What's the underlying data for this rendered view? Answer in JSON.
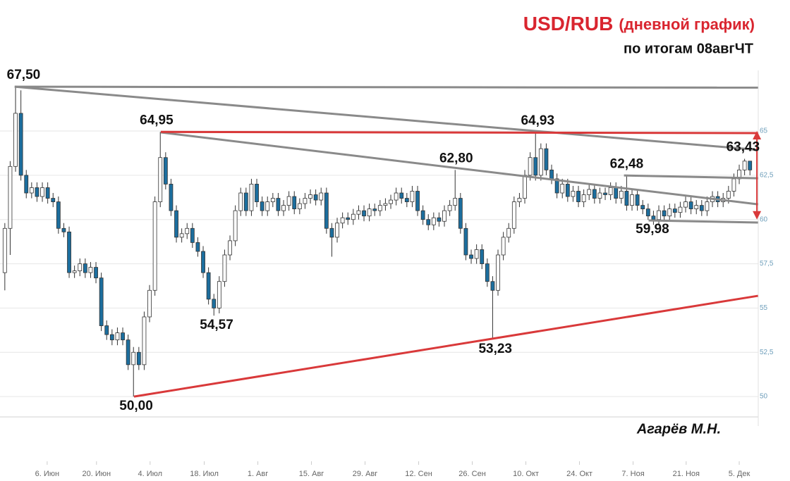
{
  "chart_data": {
    "type": "candlestick",
    "title": "USD/RUB",
    "title_note": "(дневной график)",
    "subtitle": "по итогам 08авгЧТ",
    "author": "Агарёв М.Н.",
    "up_color": "#ffffff",
    "down_color": "#1c6e9e",
    "edge_color": "#333333",
    "title_color": "#d9252f",
    "grid": true,
    "ylim": [
      48.93,
      72.4
    ],
    "yticks": [
      50,
      {
        "value": 52.5,
        "label": "52,5"
      },
      55,
      {
        "value": 57.5,
        "label": "57,5"
      },
      60,
      {
        "value": 62.5,
        "label": "62,5"
      },
      65
    ],
    "xlim": [
      -0.9,
      140.55
    ],
    "xticks": [
      {
        "value": 7.9,
        "label": "6. Июн"
      },
      {
        "value": 17.1,
        "label": "20. Июн"
      },
      {
        "value": 27.1,
        "label": "4. Июл"
      },
      {
        "value": 37.2,
        "label": "18. Июл"
      },
      {
        "value": 47.2,
        "label": "1. Авг"
      },
      {
        "value": 57.2,
        "label": "15. Авг"
      },
      {
        "value": 67.2,
        "label": "29. Авг"
      },
      {
        "value": 77.2,
        "label": "12. Сен"
      },
      {
        "value": 87.2,
        "label": "26. Сен"
      },
      {
        "value": 97.2,
        "label": "10. Окт"
      },
      {
        "value": 107.2,
        "label": "24. Окт"
      },
      {
        "value": 117.2,
        "label": "7. Ноя"
      },
      {
        "value": 127.1,
        "label": "21. Ноя"
      },
      {
        "value": 137.0,
        "label": "5. Дек"
      }
    ],
    "open": [
      57,
      59.5,
      63,
      66,
      62.5,
      61.5,
      61.8,
      61.3,
      61.8,
      61.2,
      61.0,
      59.5,
      59.3,
      57.0,
      57.1,
      57.5,
      57.0,
      57.3,
      56.7,
      54.0,
      53.5,
      53.2,
      53.6,
      53.2,
      51.8,
      52.5,
      51.8,
      54.5,
      56.0,
      61.0,
      63.5,
      62.0,
      60.5,
      59.0,
      59.2,
      59.5,
      58.7,
      58.2,
      57.0,
      55.5,
      55.0,
      56.5,
      58.0,
      58.8,
      60.5,
      61.5,
      60.5,
      62.0,
      61.0,
      60.5,
      61.0,
      61.2,
      60.5,
      60.8,
      61.3,
      60.6,
      60.9,
      61.2,
      61.4,
      61.1,
      61.5,
      59.5,
      59.0,
      59.8,
      60.1,
      60.0,
      60.3,
      60.5,
      60.2,
      60.6,
      60.5,
      60.8,
      60.9,
      61.1,
      61.5,
      61.2,
      61.0,
      61.6,
      60.5,
      60.0,
      59.7,
      60.1,
      59.9,
      60.5,
      60.8,
      61.2,
      59.5,
      58.0,
      57.8,
      58.3,
      57.5,
      56.5,
      56.0,
      58.0,
      59.0,
      59.5,
      61.0,
      61.2,
      62.5,
      63.5,
      62.5,
      64.0,
      62.8,
      62.3,
      61.5,
      62.0,
      61.3,
      61.6,
      61.0,
      61.4,
      61.7,
      61.2,
      61.5,
      61.4,
      61.8,
      61.2,
      61.6,
      60.8,
      61.4,
      60.8,
      60.6,
      60.2,
      60.0,
      60.5,
      60.2,
      60.6,
      60.4,
      60.7,
      61.0,
      60.6,
      60.8,
      60.5,
      61.0,
      61.3,
      61.0,
      61.2,
      61.6,
      62.3,
      62.8,
      63.3
    ],
    "high": [
      59.8,
      63.3,
      67.5,
      67.3,
      62.8,
      62.1,
      62.1,
      62.1,
      62.1,
      61.5,
      61.3,
      59.8,
      59.6,
      57.4,
      57.8,
      57.8,
      57.6,
      57.6,
      57.0,
      54.3,
      53.8,
      53.9,
      53.9,
      53.5,
      52.8,
      52.8,
      54.8,
      56.3,
      61.3,
      64.95,
      63.8,
      62.3,
      60.8,
      59.5,
      59.8,
      59.8,
      59.0,
      58.5,
      57.3,
      55.8,
      56.8,
      58.3,
      59.1,
      60.8,
      61.8,
      61.8,
      62.3,
      62.3,
      61.3,
      61.3,
      61.5,
      61.5,
      61.1,
      61.6,
      61.6,
      61.2,
      61.5,
      61.7,
      61.7,
      61.8,
      61.8,
      59.8,
      60.1,
      60.4,
      60.4,
      60.6,
      60.8,
      60.8,
      60.9,
      60.9,
      61.1,
      61.2,
      61.4,
      61.8,
      61.8,
      61.5,
      61.9,
      61.9,
      60.8,
      60.3,
      60.4,
      60.4,
      60.8,
      61.1,
      62.8,
      61.5,
      59.8,
      58.3,
      58.6,
      58.6,
      57.8,
      56.8,
      58.3,
      59.3,
      59.8,
      61.3,
      61.5,
      62.8,
      63.8,
      64.93,
      64.3,
      64.3,
      63.1,
      62.6,
      62.3,
      62.3,
      61.9,
      61.9,
      61.7,
      62.0,
      62.0,
      61.8,
      61.8,
      62.1,
      62.1,
      61.9,
      62.48,
      61.7,
      61.7,
      61.1,
      60.9,
      60.5,
      60.8,
      60.8,
      60.9,
      60.9,
      61.0,
      61.3,
      61.3,
      61.1,
      61.1,
      61.3,
      61.6,
      61.6,
      61.5,
      61.9,
      62.6,
      63.1,
      63.43,
      63.3
    ],
    "low": [
      56.0,
      58.0,
      62.7,
      62.2,
      61.2,
      61.2,
      61.0,
      61.0,
      60.9,
      60.7,
      59.2,
      59.0,
      56.7,
      56.7,
      56.8,
      56.7,
      56.7,
      56.4,
      53.7,
      53.2,
      52.9,
      52.9,
      52.9,
      51.5,
      50.0,
      51.5,
      51.5,
      54.2,
      55.7,
      60.7,
      61.7,
      60.2,
      58.7,
      58.7,
      58.9,
      58.4,
      57.9,
      56.7,
      55.2,
      54.57,
      54.7,
      56.2,
      57.7,
      58.5,
      60.2,
      60.2,
      60.2,
      60.7,
      60.2,
      60.2,
      60.7,
      60.2,
      60.2,
      60.5,
      60.3,
      60.3,
      60.6,
      60.9,
      60.8,
      60.8,
      59.2,
      57.9,
      58.7,
      59.5,
      59.7,
      59.7,
      60.0,
      59.9,
      59.9,
      60.2,
      60.2,
      60.5,
      60.6,
      60.8,
      60.9,
      60.7,
      60.7,
      60.2,
      59.7,
      59.4,
      59.4,
      59.6,
      59.6,
      60.2,
      60.5,
      59.2,
      57.7,
      57.5,
      57.5,
      57.2,
      56.2,
      53.23,
      55.7,
      57.7,
      58.7,
      59.2,
      60.7,
      60.9,
      62.2,
      62.2,
      62.2,
      62.5,
      62.0,
      61.2,
      61.2,
      61.0,
      61.0,
      60.7,
      60.7,
      61.1,
      60.9,
      60.9,
      61.1,
      61.1,
      60.9,
      60.9,
      60.5,
      60.5,
      60.5,
      60.3,
      59.98,
      59.7,
      59.7,
      59.9,
      59.9,
      60.1,
      60.1,
      60.4,
      60.3,
      60.3,
      60.2,
      60.2,
      60.7,
      60.7,
      60.7,
      60.9,
      61.3,
      62.0,
      62.5,
      62.5
    ],
    "close": [
      59.5,
      63,
      66,
      62.5,
      61.5,
      61.8,
      61.3,
      61.8,
      61.2,
      61.0,
      59.5,
      59.3,
      57.0,
      57.1,
      57.5,
      57.0,
      57.3,
      56.7,
      54.0,
      53.5,
      53.2,
      53.6,
      53.2,
      51.8,
      52.5,
      51.8,
      54.5,
      56.0,
      61.0,
      63.5,
      62.0,
      60.5,
      59.0,
      59.2,
      59.5,
      58.7,
      58.2,
      57.0,
      55.5,
      55.0,
      56.5,
      58.0,
      58.8,
      60.5,
      61.5,
      60.5,
      62.0,
      61.0,
      60.5,
      61.0,
      61.2,
      60.5,
      60.8,
      61.3,
      60.6,
      60.9,
      61.2,
      61.4,
      61.1,
      61.5,
      59.5,
      59.0,
      59.8,
      60.1,
      60.0,
      60.3,
      60.5,
      60.2,
      60.6,
      60.5,
      60.8,
      60.9,
      61.1,
      61.5,
      61.2,
      61.0,
      61.6,
      60.5,
      60.0,
      59.7,
      60.1,
      59.9,
      60.5,
      60.8,
      61.2,
      59.5,
      58.0,
      57.8,
      58.3,
      57.5,
      56.5,
      56.0,
      58.0,
      59.0,
      59.5,
      61.0,
      61.2,
      62.5,
      63.5,
      62.5,
      64.0,
      62.8,
      62.3,
      61.5,
      62.0,
      61.3,
      61.6,
      61.0,
      61.4,
      61.7,
      61.2,
      61.5,
      61.4,
      61.8,
      61.2,
      61.6,
      60.8,
      61.4,
      60.8,
      60.6,
      60.2,
      60.0,
      60.5,
      60.2,
      60.6,
      60.4,
      60.7,
      61.0,
      60.6,
      60.8,
      60.5,
      61.0,
      61.3,
      61.0,
      61.2,
      61.6,
      62.3,
      62.8,
      63.3,
      62.8
    ],
    "trendlines": [
      {
        "color": "#8a8a8a",
        "x": [
          1.84,
          140.5
        ],
        "y": [
          67.5,
          67.45
        ]
      },
      {
        "color": "#8a8a8a",
        "x": [
          1.84,
          140.5
        ],
        "y": [
          67.5,
          63.93
        ]
      },
      {
        "color": "#8a8a8a",
        "x": [
          29.1,
          140.5
        ],
        "y": [
          64.92,
          60.86
        ]
      },
      {
        "color": "#d9393a",
        "x": [
          29.1,
          140.5
        ],
        "y": [
          64.95,
          64.88
        ]
      },
      {
        "color": "#d9393a",
        "x": [
          24.1,
          140.5
        ],
        "y": [
          50.0,
          55.69
        ]
      },
      {
        "color": "#8a8a8a",
        "x": [
          115.5,
          140.5
        ],
        "y": [
          62.49,
          62.33
        ]
      },
      {
        "color": "#8a8a8a",
        "x": [
          120.1,
          140.5
        ],
        "y": [
          59.95,
          59.83
        ]
      }
    ],
    "arrow": {
      "color": "#d9393a",
      "x": 140.3,
      "y": [
        65,
        60
      ]
    },
    "annotations": [
      {
        "text": "67,50",
        "value": 67.5,
        "x": 3.5,
        "position": "above"
      },
      {
        "text": "64,95",
        "value": 64.95,
        "x": 28.3,
        "position": "above"
      },
      {
        "text": "54,57",
        "value": 54.57,
        "x": 39.5,
        "position": "below"
      },
      {
        "text": "50,00",
        "value": 50.0,
        "x": 24.5,
        "position": "below"
      },
      {
        "text": "62,80",
        "value": 62.8,
        "x": 84.2,
        "position": "above"
      },
      {
        "text": "53,23",
        "value": 53.23,
        "x": 91.5,
        "position": "below"
      },
      {
        "text": "64,93",
        "value": 64.93,
        "x": 99.4,
        "position": "above"
      },
      {
        "text": "62,48",
        "value": 62.48,
        "x": 116.0,
        "position": "above"
      },
      {
        "text": "59,98",
        "value": 59.98,
        "x": 120.8,
        "position": "below"
      },
      {
        "text": "63,43",
        "value": 63.43,
        "x": 137.7,
        "position": "above"
      }
    ]
  }
}
